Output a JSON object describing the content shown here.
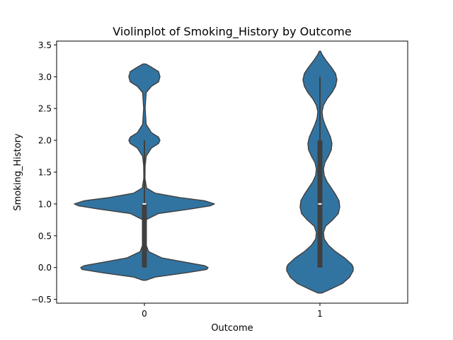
{
  "chart_data": {
    "type": "violin",
    "title": "Violinplot of Smoking_History by Outcome",
    "xlabel": "Outcome",
    "ylabel": "Smoking_History",
    "categories": [
      "0",
      "1"
    ],
    "ylim": [
      -0.56,
      3.56
    ],
    "yticks": [
      -0.5,
      0.0,
      0.5,
      1.0,
      1.5,
      2.0,
      2.5,
      3.0,
      3.5
    ],
    "ytick_labels": [
      "−0.5",
      "0.0",
      "0.5",
      "1.0",
      "1.5",
      "2.0",
      "2.5",
      "3.0",
      "3.5"
    ],
    "fill_color": "#3274a1",
    "edge_color": "#3f3f3f",
    "box_color": "#3f3f3f",
    "median_color": "#ffffff",
    "grid": false,
    "violins": [
      {
        "category": "0",
        "min": 0,
        "q1": 0,
        "median": 1,
        "q3": 1,
        "max": 2,
        "density_profile": [
          [
            -0.2,
            0.02
          ],
          [
            -0.15,
            0.15
          ],
          [
            -0.08,
            0.6
          ],
          [
            -0.03,
            0.88
          ],
          [
            0.0,
            0.9
          ],
          [
            0.03,
            0.85
          ],
          [
            0.08,
            0.6
          ],
          [
            0.15,
            0.25
          ],
          [
            0.25,
            0.06
          ],
          [
            0.4,
            0.008
          ],
          [
            0.6,
            0.004
          ],
          [
            0.75,
            0.02
          ],
          [
            0.85,
            0.2
          ],
          [
            0.92,
            0.65
          ],
          [
            0.97,
            0.93
          ],
          [
            1.0,
            0.99
          ],
          [
            1.05,
            0.85
          ],
          [
            1.1,
            0.5
          ],
          [
            1.17,
            0.15
          ],
          [
            1.25,
            0.03
          ],
          [
            1.4,
            0.008
          ],
          [
            1.6,
            0.01
          ],
          [
            1.75,
            0.025
          ],
          [
            1.88,
            0.1
          ],
          [
            1.95,
            0.2
          ],
          [
            2.0,
            0.22
          ],
          [
            2.05,
            0.2
          ],
          [
            2.12,
            0.1
          ],
          [
            2.25,
            0.025
          ],
          [
            2.5,
            0.01
          ],
          [
            2.75,
            0.025
          ],
          [
            2.85,
            0.1
          ],
          [
            2.92,
            0.2
          ],
          [
            3.0,
            0.22
          ],
          [
            3.08,
            0.2
          ],
          [
            3.15,
            0.1
          ],
          [
            3.2,
            0.02
          ]
        ]
      },
      {
        "category": "1",
        "min": 0,
        "q1": 0,
        "median": 1,
        "q3": 2,
        "max": 3,
        "density_profile": [
          [
            -0.4,
            0.03
          ],
          [
            -0.35,
            0.13
          ],
          [
            -0.25,
            0.32
          ],
          [
            -0.15,
            0.42
          ],
          [
            -0.05,
            0.47
          ],
          [
            0.0,
            0.47
          ],
          [
            0.05,
            0.45
          ],
          [
            0.15,
            0.35
          ],
          [
            0.25,
            0.22
          ],
          [
            0.35,
            0.12
          ],
          [
            0.45,
            0.06
          ],
          [
            0.55,
            0.05
          ],
          [
            0.65,
            0.08
          ],
          [
            0.75,
            0.18
          ],
          [
            0.85,
            0.26
          ],
          [
            0.95,
            0.28
          ],
          [
            1.05,
            0.27
          ],
          [
            1.15,
            0.22
          ],
          [
            1.25,
            0.16
          ],
          [
            1.35,
            0.1
          ],
          [
            1.45,
            0.06
          ],
          [
            1.55,
            0.05
          ],
          [
            1.65,
            0.07
          ],
          [
            1.75,
            0.12
          ],
          [
            1.85,
            0.16
          ],
          [
            1.95,
            0.17
          ],
          [
            2.05,
            0.15
          ],
          [
            2.15,
            0.11
          ],
          [
            2.25,
            0.07
          ],
          [
            2.35,
            0.04
          ],
          [
            2.45,
            0.03
          ],
          [
            2.55,
            0.05
          ],
          [
            2.65,
            0.1
          ],
          [
            2.75,
            0.17
          ],
          [
            2.85,
            0.22
          ],
          [
            2.95,
            0.24
          ],
          [
            3.05,
            0.22
          ],
          [
            3.15,
            0.16
          ],
          [
            3.25,
            0.09
          ],
          [
            3.35,
            0.03
          ],
          [
            3.4,
            0.01
          ]
        ]
      }
    ]
  }
}
